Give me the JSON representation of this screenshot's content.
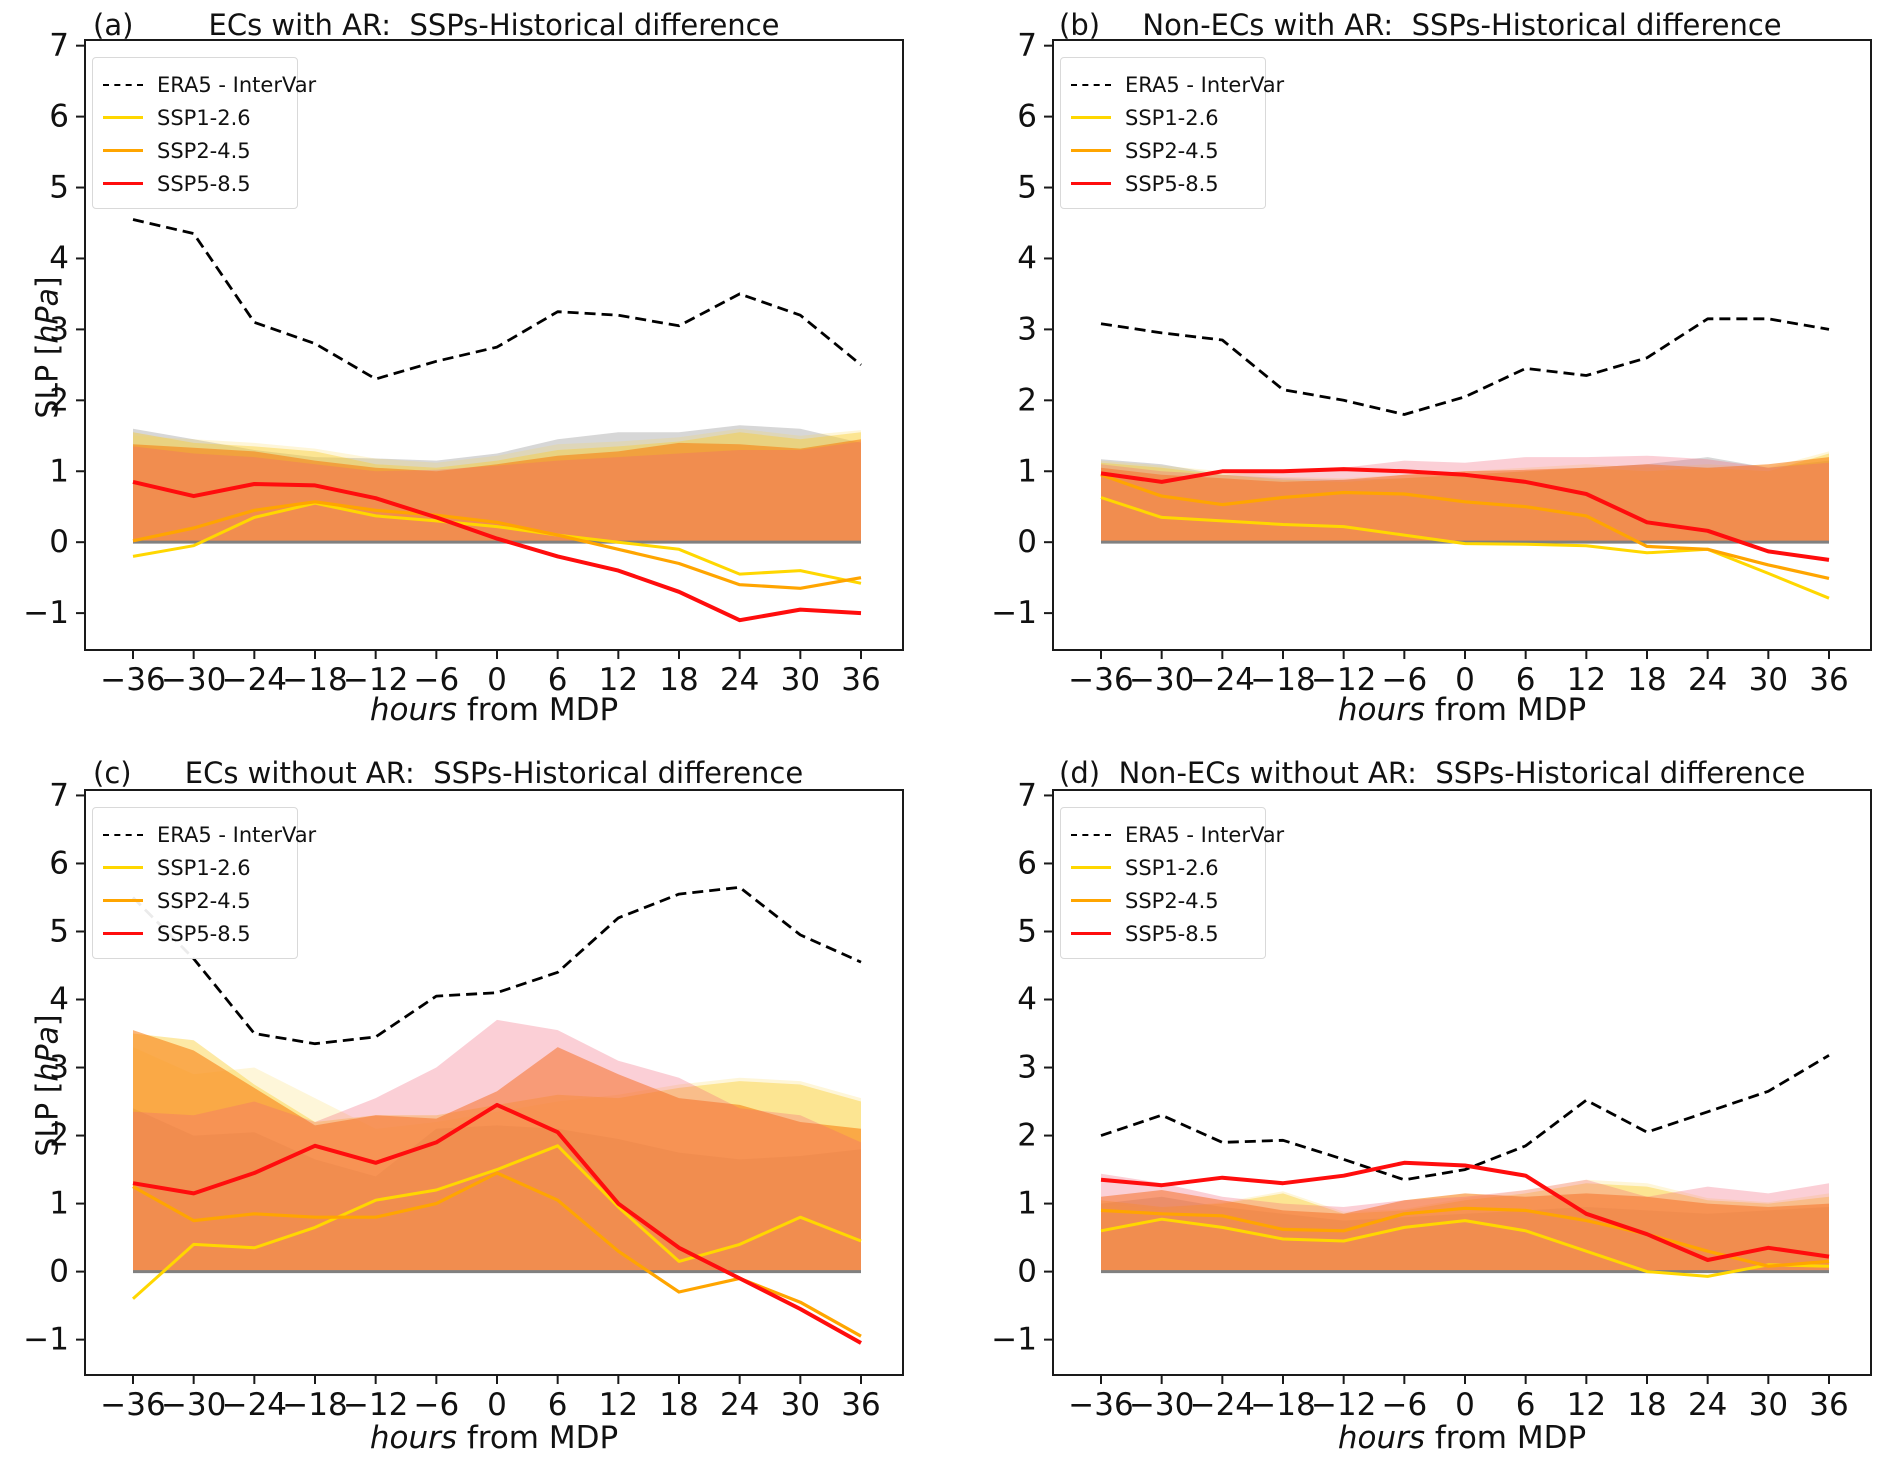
{
  "ylabel": {
    "pre": "SLP [",
    "italic": "hPa",
    "post": "]"
  },
  "xlabel": {
    "italic": "hours",
    "rest": " from MDP"
  },
  "legend": {
    "entries": [
      {
        "label": "ERA5 - InterVar",
        "color": "#000000",
        "style": "dashed"
      },
      {
        "label": "SSP1-2.6",
        "color": "#ffd700",
        "style": "solid"
      },
      {
        "label": "SSP2-4.5",
        "color": "#ffa500",
        "style": "solid"
      },
      {
        "label": "SSP5-8.5",
        "color": "#ff0d0d",
        "style": "solid"
      }
    ]
  },
  "axes": {
    "x_ticks": [
      -36,
      -30,
      -24,
      -18,
      -12,
      -6,
      0,
      6,
      12,
      18,
      24,
      30,
      36
    ],
    "y_ticks": [
      7,
      6,
      5,
      4,
      3,
      2,
      1,
      0,
      -1
    ],
    "x_range": [
      -36,
      36
    ],
    "y_range": [
      -1.52,
      7.08
    ],
    "grid": false,
    "zero_line_color": "#808080"
  },
  "chart_data": [
    {
      "type": "line",
      "panel_label": "(a)",
      "title": "ECs with AR:  SSPs-Historical difference",
      "xlabel": "hours from MDP",
      "ylabel": "SLP [hPa]",
      "x": [
        -36,
        -30,
        -24,
        -18,
        -12,
        -6,
        0,
        6,
        12,
        18,
        24,
        30,
        36
      ],
      "series": [
        {
          "name": "ERA5 - InterVar",
          "color": "#000000",
          "dash": true,
          "width": 2.8,
          "values": [
            4.55,
            4.35,
            3.1,
            2.8,
            2.3,
            2.55,
            2.75,
            3.25,
            3.2,
            3.05,
            3.5,
            3.2,
            2.5
          ]
        },
        {
          "name": "SSP1-2.6",
          "color": "#ffd700",
          "dash": false,
          "width": 3,
          "values": [
            -0.2,
            -0.05,
            0.35,
            0.55,
            0.37,
            0.3,
            0.22,
            0.1,
            0.0,
            -0.1,
            -0.45,
            -0.4,
            -0.58
          ]
        },
        {
          "name": "SSP2-4.5",
          "color": "#ffa500",
          "dash": false,
          "width": 3.2,
          "values": [
            0.02,
            0.2,
            0.45,
            0.57,
            0.45,
            0.38,
            0.28,
            0.1,
            -0.1,
            -0.3,
            -0.6,
            -0.65,
            -0.5
          ]
        },
        {
          "name": "SSP5-8.5",
          "color": "#ff0d0d",
          "dash": false,
          "width": 4,
          "values": [
            0.85,
            0.65,
            0.82,
            0.8,
            0.62,
            0.35,
            0.05,
            -0.2,
            -0.4,
            -0.7,
            -1.1,
            -0.95,
            -1.0
          ]
        }
      ],
      "bands": [
        {
          "name": "gray-spread",
          "color": "rgba(130,130,130,0.32)",
          "values": [
            1.6,
            1.45,
            1.3,
            1.2,
            1.18,
            1.15,
            1.25,
            1.45,
            1.55,
            1.55,
            1.65,
            1.6,
            1.4
          ]
        },
        {
          "name": "yellow-spread",
          "color": "rgba(250,200,30,0.4)",
          "values": [
            1.55,
            1.4,
            1.35,
            1.28,
            1.1,
            1.05,
            1.15,
            1.3,
            1.35,
            1.42,
            1.55,
            1.45,
            1.55
          ]
        },
        {
          "name": "lightyellow-spread",
          "color": "rgba(252,215,80,0.22)",
          "values": [
            1.5,
            1.45,
            1.4,
            1.32,
            1.18,
            1.12,
            1.22,
            1.38,
            1.42,
            1.48,
            1.6,
            1.5,
            1.58
          ]
        },
        {
          "name": "orange-spread",
          "color": "rgba(248,120,8,0.55)",
          "values": [
            1.38,
            1.33,
            1.28,
            1.15,
            1.05,
            1.0,
            1.1,
            1.22,
            1.28,
            1.4,
            1.38,
            1.32,
            1.45
          ]
        },
        {
          "name": "pink-spread",
          "color": "rgba(242,96,118,0.3)",
          "values": [
            1.35,
            1.25,
            1.2,
            1.1,
            1.0,
            1.02,
            1.08,
            1.15,
            1.2,
            1.25,
            1.3,
            1.3,
            1.42
          ]
        }
      ]
    },
    {
      "type": "line",
      "panel_label": "(b)",
      "title": "Non-ECs with AR:  SSPs-Historical difference",
      "xlabel": "hours from MDP",
      "x": [
        -36,
        -30,
        -24,
        -18,
        -12,
        -6,
        0,
        6,
        12,
        18,
        24,
        30,
        36
      ],
      "series": [
        {
          "name": "ERA5 - InterVar",
          "color": "#000000",
          "dash": true,
          "width": 2.8,
          "values": [
            3.08,
            2.95,
            2.85,
            2.15,
            2.0,
            1.8,
            2.05,
            2.45,
            2.35,
            2.6,
            3.15,
            3.15,
            3.0
          ]
        },
        {
          "name": "SSP1-2.6",
          "color": "#ffd700",
          "dash": false,
          "width": 3,
          "values": [
            0.63,
            0.35,
            0.3,
            0.25,
            0.22,
            0.1,
            -0.02,
            -0.03,
            -0.05,
            -0.15,
            -0.1,
            -0.44,
            -0.79
          ]
        },
        {
          "name": "SSP2-4.5",
          "color": "#ffa500",
          "dash": false,
          "width": 3.2,
          "values": [
            0.95,
            0.65,
            0.53,
            0.63,
            0.7,
            0.68,
            0.57,
            0.5,
            0.37,
            -0.06,
            -0.1,
            -0.32,
            -0.51
          ]
        },
        {
          "name": "SSP5-8.5",
          "color": "#ff0d0d",
          "dash": false,
          "width": 4,
          "values": [
            0.97,
            0.85,
            1.0,
            1.0,
            1.03,
            1.0,
            0.95,
            0.85,
            0.68,
            0.28,
            0.16,
            -0.13,
            -0.25
          ]
        }
      ],
      "bands": [
        {
          "name": "gray-spread",
          "color": "rgba(130,130,130,0.32)",
          "values": [
            1.17,
            1.1,
            0.95,
            0.9,
            0.88,
            0.9,
            0.95,
            1.0,
            1.05,
            1.1,
            1.2,
            1.05,
            1.15
          ]
        },
        {
          "name": "yellow-spread",
          "color": "rgba(250,200,30,0.4)",
          "values": [
            1.12,
            1.05,
            0.95,
            0.88,
            0.85,
            0.9,
            0.95,
            1.0,
            1.05,
            1.0,
            1.05,
            1.0,
            1.25
          ]
        },
        {
          "name": "lightyellow-spread",
          "color": "rgba(252,215,80,0.22)",
          "values": [
            1.15,
            1.08,
            1.0,
            0.92,
            0.9,
            0.95,
            1.0,
            1.05,
            1.1,
            1.05,
            1.1,
            1.05,
            1.28
          ]
        },
        {
          "name": "orange-spread",
          "color": "rgba(248,120,8,0.55)",
          "values": [
            1.05,
            0.95,
            0.9,
            0.85,
            0.88,
            0.95,
            1.0,
            1.02,
            1.05,
            1.1,
            1.05,
            1.1,
            1.2
          ]
        },
        {
          "name": "pink-spread",
          "color": "rgba(242,96,118,0.3)",
          "values": [
            1.1,
            1.0,
            0.95,
            1.0,
            1.05,
            1.15,
            1.12,
            1.2,
            1.2,
            1.22,
            1.17,
            1.05,
            1.12
          ]
        }
      ]
    },
    {
      "type": "line",
      "panel_label": "(c)",
      "title": "ECs without AR:  SSPs-Historical difference",
      "xlabel": "hours from MDP",
      "ylabel": "SLP [hPa]",
      "x": [
        -36,
        -30,
        -24,
        -18,
        -12,
        -6,
        0,
        6,
        12,
        18,
        24,
        30,
        36
      ],
      "series": [
        {
          "name": "ERA5 - InterVar",
          "color": "#000000",
          "dash": true,
          "width": 2.8,
          "values": [
            5.5,
            4.6,
            3.5,
            3.35,
            3.45,
            4.05,
            4.1,
            4.4,
            5.2,
            5.55,
            5.65,
            4.95,
            4.55
          ]
        },
        {
          "name": "SSP1-2.6",
          "color": "#ffd700",
          "dash": false,
          "width": 3,
          "values": [
            -0.4,
            0.4,
            0.35,
            0.65,
            1.05,
            1.2,
            1.5,
            1.85,
            0.95,
            0.15,
            0.4,
            0.8,
            0.45
          ]
        },
        {
          "name": "SSP2-4.5",
          "color": "#ffa500",
          "dash": false,
          "width": 3.2,
          "values": [
            1.25,
            0.75,
            0.85,
            0.8,
            0.8,
            1.0,
            1.45,
            1.05,
            0.3,
            -0.3,
            -0.1,
            -0.45,
            -0.95
          ]
        },
        {
          "name": "SSP5-8.5",
          "color": "#ff0d0d",
          "dash": false,
          "width": 4,
          "values": [
            1.3,
            1.15,
            1.45,
            1.85,
            1.6,
            1.9,
            2.45,
            2.05,
            1.0,
            0.35,
            -0.1,
            -0.55,
            -1.05
          ]
        }
      ],
      "bands": [
        {
          "name": "gray-spread",
          "color": "rgba(130,130,130,0.32)",
          "values": [
            2.4,
            2.0,
            2.05,
            1.65,
            1.4,
            2.1,
            2.15,
            2.1,
            1.95,
            1.75,
            1.65,
            1.7,
            1.8
          ]
        },
        {
          "name": "yellow-spread",
          "color": "rgba(250,200,30,0.4)",
          "values": [
            3.5,
            3.4,
            2.75,
            2.2,
            2.3,
            2.3,
            2.45,
            2.6,
            2.55,
            2.7,
            2.8,
            2.75,
            2.5
          ]
        },
        {
          "name": "lightyellow-spread",
          "color": "rgba(252,215,80,0.22)",
          "values": [
            3.3,
            2.9,
            3.0,
            2.55,
            2.1,
            2.2,
            2.35,
            2.5,
            2.6,
            2.75,
            2.85,
            2.8,
            2.55
          ]
        },
        {
          "name": "orange-spread",
          "color": "rgba(248,120,8,0.55)",
          "values": [
            3.55,
            3.25,
            2.7,
            2.15,
            2.3,
            2.25,
            2.65,
            3.3,
            2.9,
            2.55,
            2.45,
            2.2,
            2.1
          ]
        },
        {
          "name": "pink-spread",
          "color": "rgba(242,96,118,0.3)",
          "values": [
            2.35,
            2.3,
            2.5,
            2.2,
            2.55,
            3.0,
            3.7,
            3.55,
            3.1,
            2.85,
            2.4,
            2.3,
            1.9
          ]
        }
      ]
    },
    {
      "type": "line",
      "panel_label": "(d)",
      "title": "Non-ECs without AR:  SSPs-Historical difference",
      "xlabel": "hours from MDP",
      "x": [
        -36,
        -30,
        -24,
        -18,
        -12,
        -6,
        0,
        6,
        12,
        18,
        24,
        30,
        36
      ],
      "series": [
        {
          "name": "ERA5 - InterVar",
          "color": "#000000",
          "dash": true,
          "width": 2.8,
          "values": [
            2.0,
            2.3,
            1.9,
            1.93,
            1.65,
            1.35,
            1.5,
            1.85,
            2.52,
            2.05,
            2.35,
            2.65,
            3.18
          ]
        },
        {
          "name": "SSP1-2.6",
          "color": "#ffd700",
          "dash": false,
          "width": 3,
          "values": [
            0.6,
            0.77,
            0.65,
            0.48,
            0.45,
            0.65,
            0.75,
            0.6,
            0.3,
            0.0,
            -0.07,
            0.1,
            0.08
          ]
        },
        {
          "name": "SSP2-4.5",
          "color": "#ffa500",
          "dash": false,
          "width": 3.2,
          "values": [
            0.9,
            0.85,
            0.82,
            0.62,
            0.6,
            0.85,
            0.93,
            0.9,
            0.75,
            0.55,
            0.3,
            0.08,
            0.15
          ]
        },
        {
          "name": "SSP5-8.5",
          "color": "#ff0d0d",
          "dash": false,
          "width": 4,
          "values": [
            1.35,
            1.27,
            1.38,
            1.3,
            1.41,
            1.6,
            1.56,
            1.41,
            0.85,
            0.55,
            0.17,
            0.35,
            0.22
          ]
        }
      ],
      "bands": [
        {
          "name": "gray-spread",
          "color": "rgba(130,130,130,0.32)",
          "values": [
            1.0,
            1.1,
            0.95,
            0.85,
            0.75,
            0.8,
            0.85,
            0.9,
            0.95,
            0.9,
            0.85,
            0.9,
            0.95
          ]
        },
        {
          "name": "yellow-spread",
          "color": "rgba(250,200,30,0.4)",
          "values": [
            1.05,
            0.95,
            1.0,
            1.15,
            0.85,
            0.9,
            1.05,
            1.15,
            1.3,
            1.25,
            1.05,
            1.0,
            1.1
          ]
        },
        {
          "name": "lightyellow-spread",
          "color": "rgba(252,215,80,0.22)",
          "values": [
            1.0,
            0.92,
            1.02,
            1.18,
            0.88,
            0.92,
            1.08,
            1.2,
            1.35,
            1.3,
            1.08,
            1.02,
            1.15
          ]
        },
        {
          "name": "orange-spread",
          "color": "rgba(248,120,8,0.55)",
          "values": [
            1.1,
            1.2,
            1.05,
            0.9,
            0.85,
            1.05,
            1.15,
            1.1,
            1.15,
            1.1,
            1.0,
            0.95,
            1.0
          ]
        },
        {
          "name": "pink-spread",
          "color": "rgba(242,96,118,0.3)",
          "values": [
            1.44,
            1.3,
            1.1,
            1.0,
            0.95,
            1.05,
            1.1,
            1.2,
            1.35,
            1.1,
            1.25,
            1.15,
            1.3
          ]
        }
      ]
    }
  ]
}
